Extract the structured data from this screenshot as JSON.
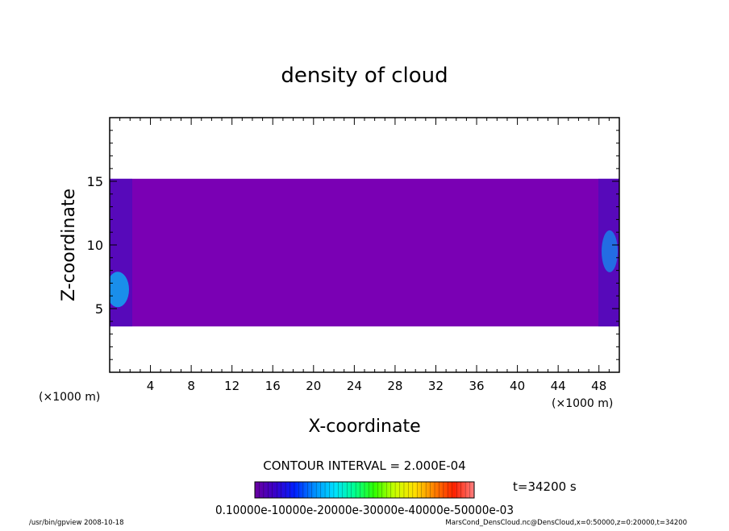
{
  "chart_data": {
    "type": "heatmap",
    "title": "density of cloud",
    "xlabel": "X-coordinate",
    "ylabel": "Z-coordinate",
    "x_unit": "(×1000 m)",
    "y_unit": "(×1000 m)",
    "xlim": [
      0,
      50
    ],
    "ylim": [
      0,
      20
    ],
    "x_ticks": [
      4,
      8,
      12,
      16,
      20,
      24,
      28,
      32,
      36,
      40,
      44,
      48
    ],
    "y_ticks": [
      5,
      10,
      15
    ],
    "cloud_layer": {
      "z_bottom": 3.6,
      "z_top": 15.2
    },
    "background_value_color": "#7a00b4",
    "contour_interval": "CONTOUR INTERVAL = 2.000E-04",
    "time_label": "t=34200 s",
    "colorbar_labels": [
      "0.1000",
      "e-10",
      "0.2000",
      "e-30",
      "0.3000",
      "e-40",
      "0.4000",
      "e-50",
      "0.5000",
      "e-03"
    ],
    "colorbar_text": "0.10000e-10000e-20000e-30000e-40000e-50000e-03",
    "colorbar_colors": [
      "#6a00a0",
      "#3a00c8",
      "#0020ff",
      "#0090ff",
      "#00e0ff",
      "#00ff90",
      "#30ff00",
      "#c8ff00",
      "#ffe000",
      "#ff8000",
      "#ff2000",
      "#ff8080"
    ]
  },
  "footer": {
    "left": "/usr/bin/gpview   2008-10-18",
    "right": "MarsCond_DensCloud.nc@DensCloud,x=0:50000,z=0:20000,t=34200"
  }
}
